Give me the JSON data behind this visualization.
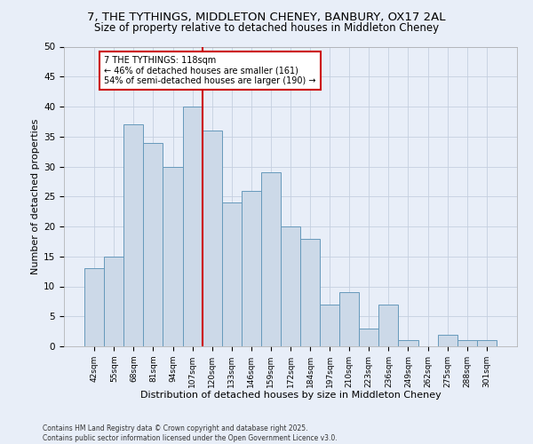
{
  "title": "7, THE TYTHINGS, MIDDLETON CHENEY, BANBURY, OX17 2AL",
  "subtitle": "Size of property relative to detached houses in Middleton Cheney",
  "xlabel": "Distribution of detached houses by size in Middleton Cheney",
  "ylabel": "Number of detached properties",
  "bar_labels": [
    "42sqm",
    "55sqm",
    "68sqm",
    "81sqm",
    "94sqm",
    "107sqm",
    "120sqm",
    "133sqm",
    "146sqm",
    "159sqm",
    "172sqm",
    "184sqm",
    "197sqm",
    "210sqm",
    "223sqm",
    "236sqm",
    "249sqm",
    "262sqm",
    "275sqm",
    "288sqm",
    "301sqm"
  ],
  "bar_values": [
    13,
    15,
    37,
    34,
    30,
    40,
    36,
    24,
    26,
    29,
    20,
    18,
    7,
    9,
    3,
    7,
    1,
    0,
    2,
    1,
    1
  ],
  "bar_color": "#ccd9e8",
  "bar_edge_color": "#6699bb",
  "vline_color": "#cc0000",
  "annotation_text_line1": "7 THE TYTHINGS: 118sqm",
  "annotation_text_line2": "← 46% of detached houses are smaller (161)",
  "annotation_text_line3": "54% of semi-detached houses are larger (190) →",
  "annotation_box_color": "#ffffff",
  "annotation_box_edge": "#cc0000",
  "ylim": [
    0,
    50
  ],
  "yticks": [
    0,
    5,
    10,
    15,
    20,
    25,
    30,
    35,
    40,
    45,
    50
  ],
  "grid_color": "#c5cfe0",
  "background_color": "#e8eef8",
  "footer_line1": "Contains HM Land Registry data © Crown copyright and database right 2025.",
  "footer_line2": "Contains public sector information licensed under the Open Government Licence v3.0."
}
